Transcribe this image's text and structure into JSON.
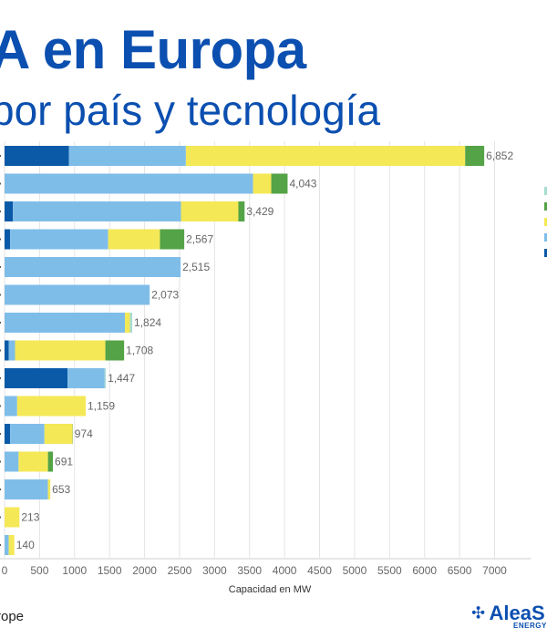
{
  "header": {
    "title": "A en Europa",
    "subtitle": "por país y tecnología"
  },
  "footer": {
    "source": "rope",
    "logo_name": "AleaS",
    "logo_tagline": "ENERGY"
  },
  "colors": {
    "series": [
      "#0b5aa8",
      "#7fbde9",
      "#f4e856",
      "#54a346",
      "#a8dcd1"
    ],
    "label_text": "#666666",
    "title": "#0b4fb0"
  },
  "chart_data": {
    "type": "bar",
    "orientation": "horizontal",
    "stacked": true,
    "xlabel": "Capacidad en MW",
    "xlim": [
      0,
      7200
    ],
    "xticks": [
      0,
      500,
      1000,
      1500,
      2000,
      2500,
      3000,
      3500,
      4000,
      4500,
      5000,
      5500,
      6000,
      6500,
      7000
    ],
    "totals": [
      "6,852",
      "4,043",
      "3,429",
      "2,567",
      "2,515",
      "2,073",
      "1,824",
      "1,708",
      "1,447",
      "1,159",
      "974",
      "691",
      "653",
      "213",
      "140"
    ],
    "series": [
      {
        "values": [
          920,
          0,
          120,
          80,
          0,
          0,
          0,
          60,
          900,
          0,
          80,
          0,
          0,
          0,
          0
        ]
      },
      {
        "values": [
          1670,
          3550,
          2400,
          1400,
          2515,
          2073,
          1720,
          90,
          530,
          180,
          490,
          200,
          620,
          0,
          60
        ]
      },
      {
        "values": [
          3990,
          260,
          820,
          740,
          0,
          0,
          70,
          1290,
          0,
          979,
          400,
          420,
          33,
          213,
          80
        ]
      },
      {
        "values": [
          272,
          233,
          89,
          347,
          0,
          0,
          0,
          268,
          0,
          0,
          4,
          71,
          0,
          0,
          0
        ]
      },
      {
        "values": [
          0,
          0,
          0,
          0,
          0,
          0,
          34,
          0,
          17,
          0,
          0,
          0,
          0,
          0,
          0
        ]
      }
    ]
  }
}
